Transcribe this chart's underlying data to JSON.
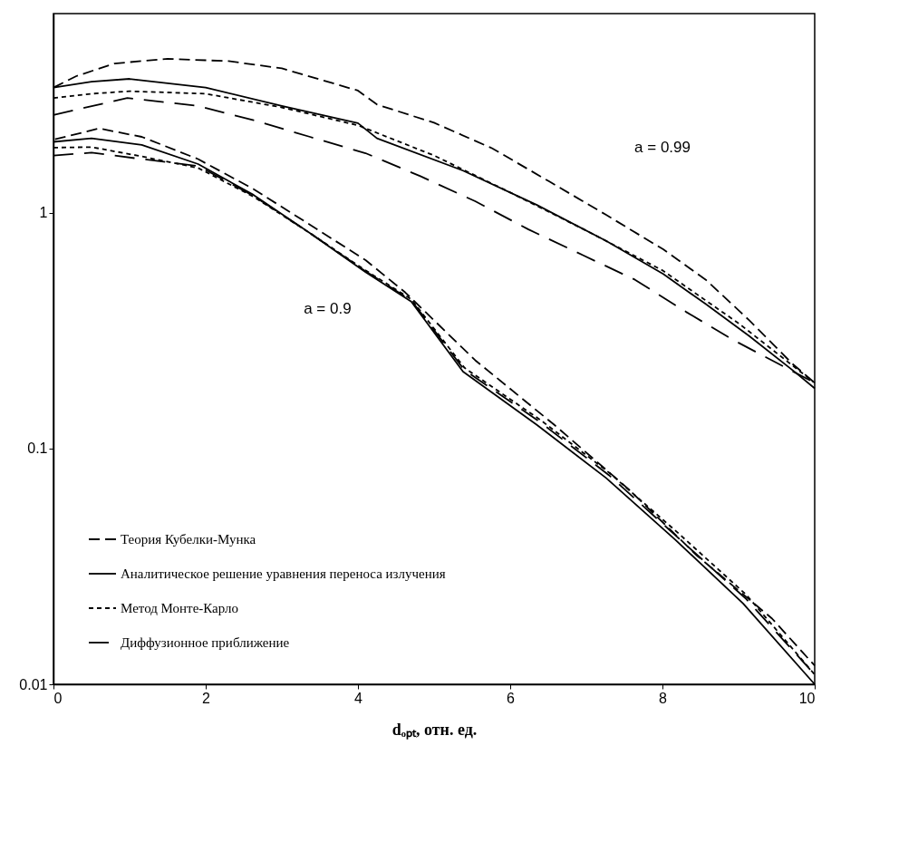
{
  "chart_data": {
    "type": "line",
    "xlabel": "dₒₚₜ, отн. ед.",
    "xlim": [
      0,
      10
    ],
    "xticks": [
      0,
      2,
      4,
      6,
      8,
      10
    ],
    "ylim": [
      0.01,
      7
    ],
    "yticks": [
      0.01,
      0.1,
      1
    ],
    "log": "y",
    "grid": false,
    "legend": "bottom left",
    "series": [
      {
        "name": "Теория Кубелки-Мунка",
        "color": "#000000",
        "line_style": "dashed",
        "x": [
          0.02,
          0.6,
          1.16,
          1.9,
          2.63,
          3.37,
          4.1,
          4.62,
          5.54,
          6.58,
          7.56,
          8.46,
          9.44,
          10
        ],
        "values": [
          2.05,
          2.28,
          2.1,
          1.69,
          1.26,
          0.89,
          0.63,
          0.46,
          0.237,
          0.126,
          0.067,
          0.035,
          0.019,
          0.012
        ]
      },
      {
        "name": "Аналитическое решение уравнения переноса излучения",
        "color": "#000000",
        "line_style": "solid",
        "x": [
          0,
          0.5,
          1.16,
          1.9,
          2.63,
          3.37,
          4.1,
          4.7,
          5.38,
          6.35,
          7.26,
          8.17,
          9.06,
          10
        ],
        "values": [
          2.0,
          2.07,
          1.94,
          1.61,
          1.19,
          0.82,
          0.56,
          0.42,
          0.212,
          0.126,
          0.075,
          0.041,
          0.022,
          0.01
        ]
      },
      {
        "name": "Метод Монте-Карло",
        "color": "#000000",
        "line_style": "dotted",
        "x": [
          0,
          0.5,
          1.1,
          1.9,
          2.63,
          3.37,
          4.1,
          4.7,
          5.4,
          6.4,
          7.3,
          8.2,
          9.1,
          10
        ],
        "values": [
          1.89,
          1.9,
          1.75,
          1.55,
          1.17,
          0.82,
          0.57,
          0.43,
          0.22,
          0.132,
          0.079,
          0.044,
          0.024,
          0.011
        ]
      },
      {
        "name": "Диффузионное приближение",
        "color": "#000000",
        "line_style": "longdash",
        "x": [
          0,
          0.5,
          1.1,
          1.9,
          2.63,
          3.37,
          4.1,
          4.7,
          5.4,
          6.4,
          7.3,
          8.2,
          9.1,
          10
        ],
        "values": [
          1.75,
          1.8,
          1.7,
          1.58,
          1.18,
          0.82,
          0.565,
          0.425,
          0.215,
          0.129,
          0.077,
          0.042,
          0.023,
          0.011
        ]
      },
      {
        "color": "#000000",
        "line_style": "dashed",
        "x": [
          0,
          0.3,
          0.8,
          1.5,
          2.3,
          3.0,
          4.0,
          4.25,
          5.0,
          5.76,
          6.51,
          7.26,
          8.01,
          8.57,
          9.14,
          9.7,
          10
        ],
        "values": [
          3.4,
          3.8,
          4.3,
          4.5,
          4.4,
          4.1,
          3.3,
          2.88,
          2.41,
          1.88,
          1.36,
          0.98,
          0.7,
          0.52,
          0.35,
          0.23,
          0.19
        ]
      },
      {
        "color": "#000000",
        "line_style": "solid",
        "x": [
          0,
          0.5,
          1.0,
          2.0,
          3.0,
          4.0,
          4.25,
          5.38,
          6.35,
          7.26,
          8.01,
          8.57,
          9.14,
          9.75,
          10
        ],
        "values": [
          3.4,
          3.6,
          3.7,
          3.4,
          2.84,
          2.4,
          2.07,
          1.51,
          1.08,
          0.76,
          0.55,
          0.41,
          0.3,
          0.21,
          0.18
        ]
      },
      {
        "color": "#000000",
        "line_style": "dotted",
        "x": [
          0,
          0.5,
          1.0,
          2.0,
          3.0,
          4.0,
          5.0,
          6.0,
          7.0,
          8.0,
          9.0,
          10
        ],
        "values": [
          3.07,
          3.2,
          3.28,
          3.2,
          2.8,
          2.35,
          1.75,
          1.22,
          0.84,
          0.57,
          0.34,
          0.19
        ]
      },
      {
        "color": "#000000",
        "line_style": "longdash",
        "x": [
          0,
          0.97,
          1.9,
          2.63,
          3.37,
          4.1,
          4.82,
          5.54,
          6.24,
          6.96,
          7.64,
          8.31,
          8.92,
          9.51,
          10
        ],
        "values": [
          2.6,
          3.07,
          2.84,
          2.47,
          2.1,
          1.79,
          1.43,
          1.12,
          0.85,
          0.66,
          0.52,
          0.38,
          0.29,
          0.23,
          0.19
        ]
      }
    ],
    "annotations": [
      "a = 0.9",
      "a = 0.99"
    ]
  }
}
